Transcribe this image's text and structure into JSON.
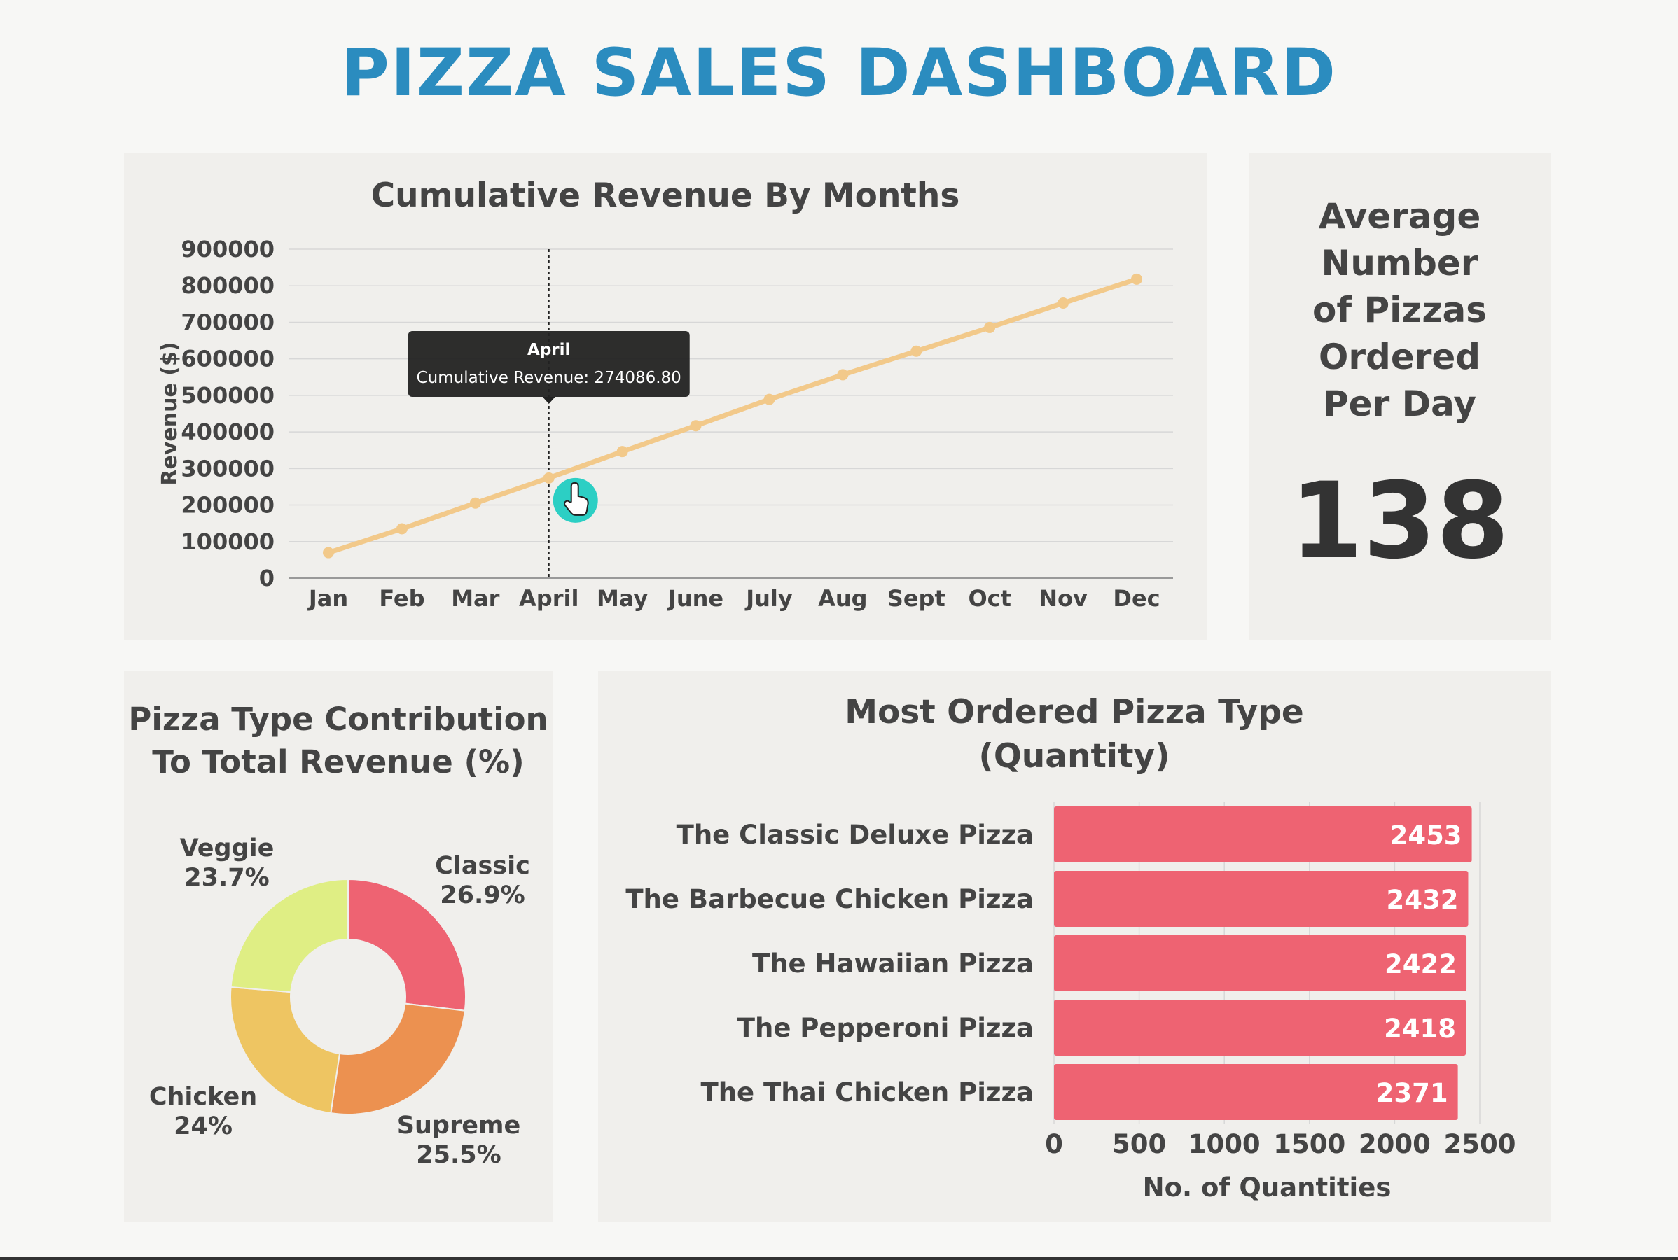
{
  "dashboard": {
    "title": "PIZZA SALES DASHBOARD"
  },
  "kpi": {
    "label_lines": [
      "Average",
      "Number",
      "of Pizzas",
      "Ordered",
      "Per Day"
    ],
    "value": "138"
  },
  "tooltip": {
    "title": "April",
    "text": "Cumulative Revenue: 274086.80"
  },
  "colors": {
    "title": "#2b8cbf",
    "line": "#f2c98a",
    "bar": "#ee6372",
    "cursor": "#2ccfc4",
    "pie_classic": "#ee6372",
    "pie_supreme": "#ec9150",
    "pie_chicken": "#eec562",
    "pie_veggie": "#dfee84"
  },
  "chart_data": [
    {
      "type": "line",
      "title": "Cumulative Revenue By Months",
      "xlabel": "",
      "ylabel": "Revenue ($)",
      "categories": [
        "Jan",
        "Feb",
        "Mar",
        "April",
        "May",
        "June",
        "July",
        "Aug",
        "Sept",
        "Oct",
        "Nov",
        "Dec"
      ],
      "values": [
        69793,
        134953,
        205350,
        274086.8,
        346266,
        417077,
        489004,
        556409,
        620827,
        685654,
        752563,
        817860
      ],
      "ylim": [
        0,
        900000
      ],
      "yticks": [
        "0",
        "100000",
        "200000",
        "300000",
        "400000",
        "500000",
        "600000",
        "700000",
        "800000",
        "900000"
      ],
      "grid": true
    },
    {
      "type": "pie",
      "title_lines": [
        "Pizza Type Contribution",
        "To Total Revenue (%)"
      ],
      "slices": [
        {
          "name": "Classic",
          "value": 26.9,
          "label": "26.9%"
        },
        {
          "name": "Supreme",
          "value": 25.5,
          "label": "25.5%"
        },
        {
          "name": "Chicken",
          "value": 24,
          "label": "24%"
        },
        {
          "name": "Veggie",
          "value": 23.7,
          "label": "23.7%"
        }
      ]
    },
    {
      "type": "bar",
      "orientation": "horizontal",
      "title_lines": [
        "Most Ordered Pizza Type",
        "(Quantity)"
      ],
      "categories": [
        "The Classic Deluxe Pizza",
        "The Barbecue Chicken Pizza",
        "The Hawaiian Pizza",
        "The Pepperoni Pizza",
        "The Thai Chicken Pizza"
      ],
      "values": [
        2453,
        2432,
        2422,
        2418,
        2371
      ],
      "xlabel": "No. of Quantities",
      "xlim": [
        0,
        2500
      ],
      "xticks": [
        "0",
        "500",
        "1000",
        "1500",
        "2000",
        "2500"
      ]
    }
  ]
}
